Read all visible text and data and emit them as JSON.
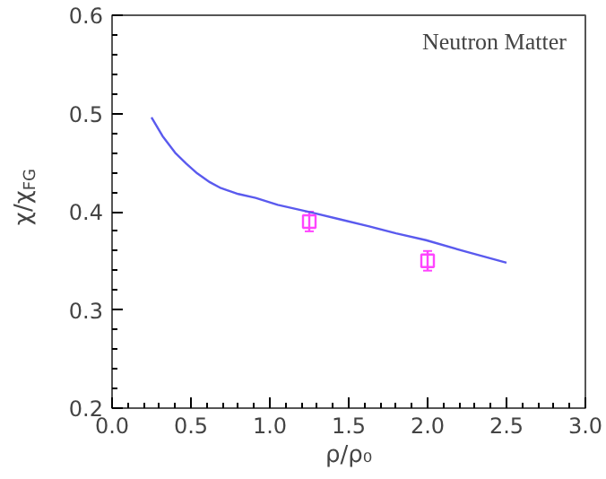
{
  "chart_data": {
    "type": "line",
    "xlabel": "ρ/ρ₀",
    "ylabel": "χ/χ$_{FG}$",
    "annotations": [
      "Neutron Matter"
    ],
    "xlim": [
      0,
      3.0
    ],
    "ylim": [
      0.2,
      0.6
    ],
    "xticks": [
      {
        "value": 0,
        "label": "0.0"
      },
      0.5,
      {
        "value": 1,
        "label": "1.0"
      },
      1.5,
      {
        "value": 2,
        "label": "2.0"
      },
      2.5,
      {
        "value": 3,
        "label": "3.0"
      }
    ],
    "yticks": [
      0.2,
      0.3,
      0.4,
      0.5,
      0.6
    ],
    "grid": false,
    "series": [
      {
        "color": "#5a5aee",
        "x": [
          0.25,
          0.32,
          0.4,
          0.47,
          0.54,
          0.62,
          0.69,
          0.8,
          0.91,
          1.05,
          1.27,
          1.45,
          1.63,
          1.8,
          1.99,
          2.25,
          2.5
        ],
        "values": [
          0.496,
          0.477,
          0.46,
          0.449,
          0.439,
          0.43,
          0.424,
          0.418,
          0.414,
          0.407,
          0.399,
          0.392,
          0.385,
          0.378,
          0.371,
          0.359,
          0.348
        ],
        "marker": "none",
        "line_style": "solid"
      },
      {
        "type": "scatter",
        "color": "#ff44ff",
        "x": [
          1.25,
          2.0
        ],
        "values": [
          0.39,
          0.35
        ],
        "errors": [
          0.01,
          0.01
        ],
        "marker": "square"
      }
    ]
  }
}
